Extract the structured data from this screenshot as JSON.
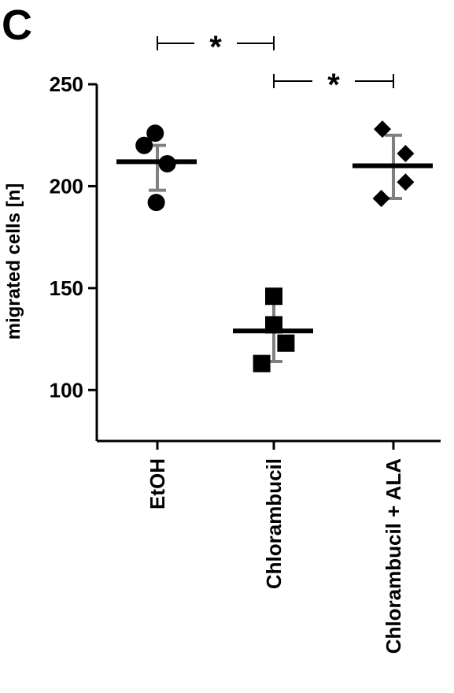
{
  "panel_label": "C",
  "chart_data": {
    "type": "scatter",
    "title": "",
    "xlabel": "",
    "ylabel": "migrated cells [n]",
    "ylim": [
      75,
      250
    ],
    "yticks": [
      100,
      150,
      200,
      250
    ],
    "categories": [
      "EtOH",
      "Chlorambucil",
      "Chlorambucil + ALA"
    ],
    "groups": [
      {
        "category": "EtOH",
        "marker": "circle",
        "points": [
          {
            "dx": -0.6,
            "y": 220
          },
          {
            "dx": -0.1,
            "y": 226
          },
          {
            "dx": 0.45,
            "y": 211
          },
          {
            "dx": -0.05,
            "y": 192
          }
        ],
        "mean": 212,
        "sd_low": 198,
        "sd_high": 220
      },
      {
        "category": "Chlorambucil",
        "marker": "square",
        "points": [
          {
            "dx": 0.0,
            "y": 146
          },
          {
            "dx": 0.0,
            "y": 132
          },
          {
            "dx": 0.55,
            "y": 123
          },
          {
            "dx": -0.55,
            "y": 113
          }
        ],
        "mean": 129,
        "sd_low": 114,
        "sd_high": 143
      },
      {
        "category": "Chlorambucil + ALA",
        "marker": "diamond",
        "points": [
          {
            "dx": -0.5,
            "y": 228
          },
          {
            "dx": 0.55,
            "y": 216
          },
          {
            "dx": 0.55,
            "y": 202
          },
          {
            "dx": -0.55,
            "y": 194
          }
        ],
        "mean": 210,
        "sd_low": 194,
        "sd_high": 225
      }
    ],
    "significance": [
      {
        "from": "EtOH",
        "to": "Chlorambucil",
        "label": "*"
      },
      {
        "from": "Chlorambucil",
        "to": "Chlorambucil + ALA",
        "label": "*"
      }
    ],
    "colors": {
      "points": "#000000",
      "mean_line": "#000000",
      "error_bar": "#808080"
    }
  }
}
